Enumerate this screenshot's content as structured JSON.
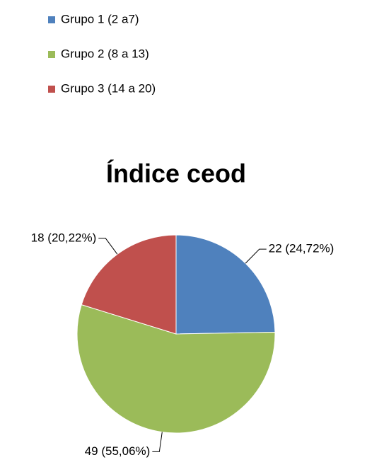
{
  "chart_data": {
    "type": "pie",
    "title": "Índice ceod",
    "categories": [
      "Grupo 1 (2 a7)",
      "Grupo 2 (8 a 13)",
      "Grupo 3 (14 a 20)"
    ],
    "values": [
      22,
      49,
      18
    ],
    "value_labels": [
      "22 (24,72%)",
      "49 (55,06%)",
      "18 (20,22%)"
    ],
    "colors": [
      "#4f81bd",
      "#9bbb59",
      "#c0504d"
    ],
    "legend": "top"
  }
}
